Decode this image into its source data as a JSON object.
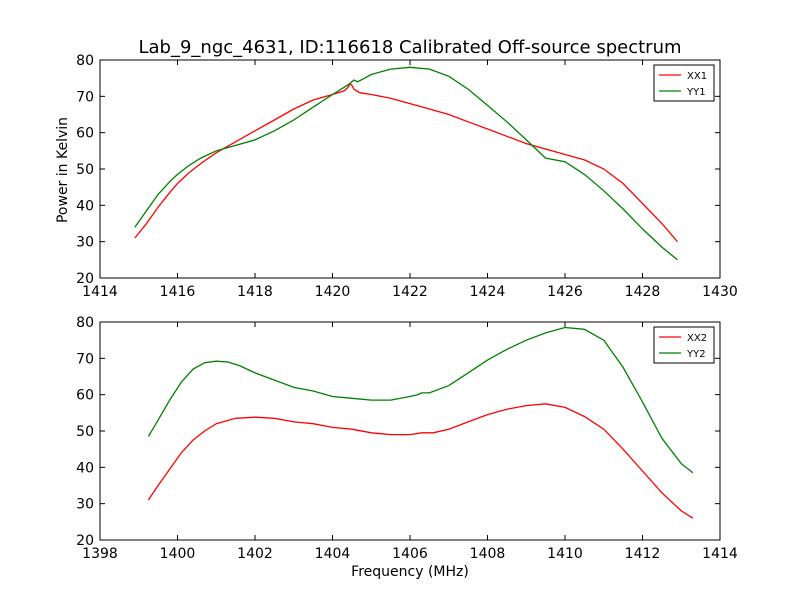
{
  "title": "Lab_9_ngc_4631, ID:116618 Calibrated Off-source spectrum",
  "ylabel": "Power in Kelvin",
  "xlabel": "Frequency (MHz)",
  "colors": {
    "red": "#ff0000",
    "green": "#008000",
    "axes": "#000000"
  },
  "chart_data": [
    {
      "type": "line",
      "title": "Lab_9_ngc_4631, ID:116618 Calibrated Off-source spectrum",
      "ylabel": "Power in Kelvin",
      "xlabel": "",
      "xlim": [
        1414,
        1430
      ],
      "ylim": [
        20,
        80
      ],
      "xticks": [
        "1414",
        "1416",
        "1418",
        "1420",
        "1422",
        "1424",
        "1426",
        "1428",
        "1430"
      ],
      "yticks": [
        "20",
        "30",
        "40",
        "50",
        "60",
        "70",
        "80"
      ],
      "legend": "top-right",
      "grid": false,
      "series": [
        {
          "name": "XX1",
          "color": "#ff0000",
          "x": [
            1414.9,
            1415.2,
            1415.5,
            1415.8,
            1416.0,
            1416.3,
            1416.6,
            1417.0,
            1417.5,
            1418.0,
            1418.5,
            1419.0,
            1419.5,
            1420.0,
            1420.3,
            1420.4,
            1420.45,
            1420.5,
            1420.55,
            1420.7,
            1421.0,
            1421.5,
            1422.0,
            1422.5,
            1423.0,
            1423.5,
            1424.0,
            1424.5,
            1425.0,
            1425.5,
            1426.0,
            1426.5,
            1427.0,
            1427.5,
            1428.0,
            1428.5,
            1428.9
          ],
          "y": [
            31,
            35,
            39.5,
            43.5,
            46,
            49,
            51.5,
            54.5,
            57.5,
            60.5,
            63.5,
            66.5,
            69,
            70.5,
            71.5,
            72.5,
            73.5,
            73,
            72,
            71,
            70.5,
            69.5,
            68,
            66.5,
            65,
            63,
            61,
            59,
            57,
            55.5,
            54,
            52.5,
            50,
            46,
            40.5,
            35,
            30
          ]
        },
        {
          "name": "YY1",
          "color": "#008000",
          "x": [
            1414.9,
            1415.2,
            1415.5,
            1415.8,
            1416.0,
            1416.3,
            1416.6,
            1417.0,
            1417.5,
            1418.0,
            1418.5,
            1419.0,
            1419.5,
            1420.0,
            1420.3,
            1420.45,
            1420.55,
            1420.65,
            1421.0,
            1421.5,
            1422.0,
            1422.5,
            1423.0,
            1423.5,
            1424.0,
            1424.5,
            1425.0,
            1425.5,
            1426.0,
            1426.5,
            1427.0,
            1427.5,
            1428.0,
            1428.5,
            1428.9
          ],
          "y": [
            34,
            38.5,
            43,
            46.5,
            48.5,
            51,
            53,
            55,
            56.5,
            58,
            60.5,
            63.5,
            67,
            70.5,
            72.5,
            73.5,
            74.5,
            74,
            76,
            77.5,
            78,
            77.5,
            75.5,
            72,
            67.5,
            63,
            58,
            53,
            52,
            48.5,
            44,
            39,
            33.5,
            28.5,
            25
          ]
        }
      ]
    },
    {
      "type": "line",
      "title": "",
      "ylabel": "",
      "xlabel": "Frequency (MHz)",
      "xlim": [
        1398,
        1414
      ],
      "ylim": [
        20,
        80
      ],
      "xticks": [
        "1398",
        "1400",
        "1402",
        "1404",
        "1406",
        "1408",
        "1410",
        "1412",
        "1414"
      ],
      "yticks": [
        "20",
        "30",
        "40",
        "50",
        "60",
        "70",
        "80"
      ],
      "legend": "top-right",
      "grid": false,
      "series": [
        {
          "name": "XX2",
          "color": "#ff0000",
          "x": [
            1399.25,
            1399.5,
            1399.8,
            1400.1,
            1400.4,
            1400.7,
            1401.0,
            1401.5,
            1402.0,
            1402.5,
            1403.0,
            1403.5,
            1404.0,
            1404.5,
            1405.0,
            1405.5,
            1406.0,
            1406.3,
            1406.6,
            1407.0,
            1407.5,
            1408.0,
            1408.5,
            1409.0,
            1409.5,
            1410.0,
            1410.5,
            1411.0,
            1411.5,
            1412.0,
            1412.5,
            1413.0,
            1413.3
          ],
          "y": [
            31,
            35,
            39.5,
            44,
            47.5,
            50,
            52,
            53.5,
            53.8,
            53.5,
            52.5,
            52,
            51,
            50.5,
            49.5,
            49,
            49,
            49.5,
            49.5,
            50.5,
            52.5,
            54.5,
            56,
            57,
            57.5,
            56.5,
            54,
            50.5,
            45,
            39,
            33,
            28,
            26
          ]
        },
        {
          "name": "YY2",
          "color": "#008000",
          "x": [
            1399.25,
            1399.5,
            1399.8,
            1400.1,
            1400.4,
            1400.7,
            1401.0,
            1401.3,
            1401.6,
            1402.0,
            1402.5,
            1403.0,
            1403.5,
            1404.0,
            1404.5,
            1405.0,
            1405.5,
            1406.0,
            1406.2,
            1406.3,
            1406.5,
            1407.0,
            1407.5,
            1408.0,
            1408.5,
            1409.0,
            1409.5,
            1410.0,
            1410.5,
            1411.0,
            1411.5,
            1412.0,
            1412.5,
            1413.0,
            1413.3
          ],
          "y": [
            48.5,
            53,
            58.5,
            63.5,
            67,
            68.8,
            69.2,
            69,
            68,
            66,
            64,
            62,
            61,
            59.5,
            59,
            58.5,
            58.5,
            59.5,
            60,
            60.5,
            60.5,
            62.5,
            66,
            69.5,
            72.5,
            75,
            77,
            78.5,
            78,
            75,
            67.5,
            58,
            48,
            41,
            38.5
          ]
        }
      ]
    }
  ]
}
